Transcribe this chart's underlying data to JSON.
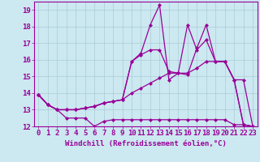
{
  "xlabel": "Windchill (Refroidissement éolien,°C)",
  "ylabel": "",
  "background_color": "#cce8f0",
  "line_color": "#990099",
  "xlim": [
    -0.5,
    23.5
  ],
  "ylim": [
    12,
    19.5
  ],
  "xticks": [
    0,
    1,
    2,
    3,
    4,
    5,
    6,
    7,
    8,
    9,
    10,
    11,
    12,
    13,
    14,
    15,
    16,
    17,
    18,
    19,
    20,
    21,
    22,
    23
  ],
  "yticks": [
    12,
    13,
    14,
    15,
    16,
    17,
    18,
    19
  ],
  "grid_color": "#aaccd8",
  "line1_x": [
    0,
    1,
    2,
    3,
    4,
    5,
    6,
    7,
    8,
    9,
    10,
    11,
    12,
    13,
    14,
    15,
    16,
    17,
    18,
    19,
    20,
    21,
    22,
    23
  ],
  "line1_y": [
    13.9,
    13.3,
    13.0,
    12.5,
    12.5,
    12.5,
    12.0,
    12.3,
    12.4,
    12.4,
    12.4,
    12.4,
    12.4,
    12.4,
    12.4,
    12.4,
    12.4,
    12.4,
    12.4,
    12.4,
    12.4,
    12.1,
    12.1,
    12.0
  ],
  "line2_x": [
    0,
    1,
    2,
    3,
    4,
    5,
    6,
    7,
    8,
    9,
    10,
    11,
    12,
    13,
    14,
    15,
    16,
    17,
    18,
    19,
    20,
    21,
    22,
    23
  ],
  "line2_y": [
    13.9,
    13.3,
    13.0,
    13.0,
    13.0,
    13.1,
    13.2,
    13.4,
    13.5,
    13.6,
    15.9,
    16.3,
    16.6,
    16.6,
    15.3,
    15.2,
    15.1,
    16.7,
    18.1,
    15.9,
    15.9,
    14.8,
    12.1,
    12.0
  ],
  "line3_x": [
    0,
    1,
    2,
    3,
    4,
    5,
    6,
    7,
    8,
    9,
    10,
    11,
    12,
    13,
    14,
    15,
    16,
    17,
    18,
    19,
    20,
    21,
    22,
    23
  ],
  "line3_y": [
    13.9,
    13.3,
    13.0,
    13.0,
    13.0,
    13.1,
    13.2,
    13.4,
    13.5,
    13.6,
    15.9,
    16.4,
    18.1,
    19.3,
    14.8,
    15.2,
    18.1,
    16.6,
    17.2,
    15.9,
    15.9,
    14.8,
    14.8,
    12.0
  ],
  "line4_x": [
    0,
    1,
    2,
    3,
    4,
    5,
    6,
    7,
    8,
    9,
    10,
    11,
    12,
    13,
    14,
    15,
    16,
    17,
    18,
    19,
    20,
    21,
    22,
    23
  ],
  "line4_y": [
    13.9,
    13.3,
    13.0,
    13.0,
    13.0,
    13.1,
    13.2,
    13.4,
    13.5,
    13.6,
    14.0,
    14.3,
    14.6,
    14.9,
    15.2,
    15.2,
    15.2,
    15.5,
    15.9,
    15.9,
    15.9,
    14.8,
    12.1,
    12.0
  ],
  "tick_fontsize": 6.5,
  "xlabel_fontsize": 6.5
}
